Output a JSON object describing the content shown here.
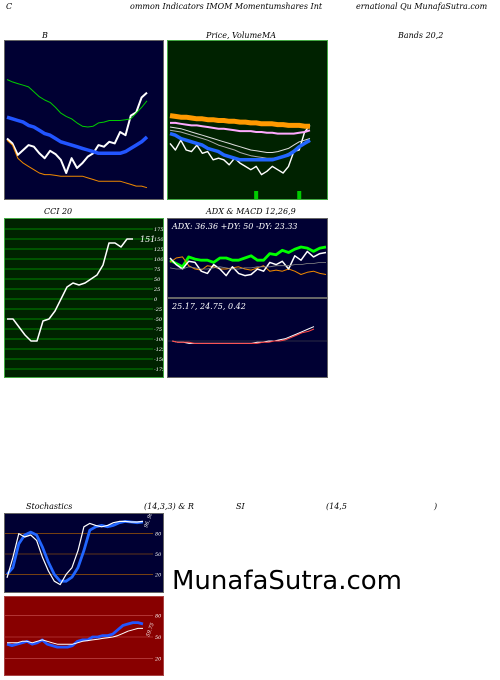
{
  "header": {
    "prefix": "C",
    "middle": "ommon  Indicators IMOM Momentumshares Int",
    "right": "ernational Qu  MunafaSutra.com"
  },
  "titles": {
    "bollinger": "B",
    "price_left": "Price,",
    "price_vol": "Volume",
    "price_ma": "MA",
    "bands": "Bands 20,2",
    "cci": "CCI 20",
    "adx_macd": "ADX  & MACD 12,26,9",
    "stoch_left": "Stochastics",
    "stoch_mid": "(14,3,3) & R",
    "rsi": "SI",
    "rsi_mid": "(14,5",
    "rsi_right": ")"
  },
  "watermark": "MunafaSutra.com",
  "colors": {
    "navy_bg": "#000033",
    "green_bg": "#002200",
    "adx_bg": "#000033",
    "rsi_bg": "#880000",
    "grid_green": "#00aa00"
  },
  "chart_data": [
    {
      "name": "bollinger",
      "type": "line",
      "series": [
        {
          "color": "#ffffff",
          "values": [
            64,
            58,
            44,
            50,
            56,
            54,
            46,
            40,
            49,
            45,
            38,
            22,
            40,
            28,
            34,
            42,
            46,
            56,
            54,
            60,
            58,
            72,
            68,
            92,
            96,
            114,
            120
          ]
        },
        {
          "color": "#2255ff",
          "values": [
            90,
            88,
            86,
            84,
            80,
            78,
            74,
            70,
            68,
            64,
            60,
            58,
            56,
            54,
            52,
            50,
            48,
            46,
            46,
            46,
            46,
            46,
            48,
            52,
            56,
            60,
            66
          ]
        },
        {
          "color": "#00cc00",
          "values": [
            136,
            133,
            131,
            129,
            127,
            121,
            115,
            111,
            108,
            102,
            95,
            91,
            88,
            83,
            79,
            78,
            79,
            83,
            84,
            86,
            86,
            86,
            87,
            88,
            95,
            102,
            110
          ]
        },
        {
          "color": "#ee8800",
          "values": [
            62,
            56,
            40,
            34,
            30,
            26,
            22,
            20,
            20,
            19,
            18,
            18,
            18,
            18,
            18,
            16,
            14,
            12,
            12,
            12,
            12,
            12,
            10,
            8,
            6,
            6,
            4
          ]
        }
      ]
    },
    {
      "name": "price_ma",
      "type": "line",
      "series": [
        {
          "color": "#ffffff",
          "values": [
            58,
            50,
            62,
            50,
            48,
            56,
            46,
            48,
            38,
            40,
            38,
            32,
            40,
            34,
            30,
            26,
            30,
            20,
            24,
            30,
            26,
            22,
            30,
            48,
            50,
            72,
            80
          ]
        },
        {
          "color": "#ff9900",
          "values": [
            92,
            91,
            90,
            90,
            89,
            88,
            88,
            87,
            87,
            86,
            86,
            85,
            85,
            84,
            84,
            83,
            83,
            82,
            82,
            82,
            81,
            81,
            80,
            80,
            80,
            79,
            79
          ]
        },
        {
          "color": "#ffaaff",
          "values": [
            83,
            83,
            82,
            81,
            80,
            80,
            79,
            78,
            77,
            76,
            76,
            75,
            74,
            73,
            73,
            73,
            72,
            72,
            71,
            71,
            70,
            70,
            70,
            70,
            71,
            72,
            74
          ]
        },
        {
          "color": "#dddddd",
          "values": [
            78,
            77,
            76,
            74,
            72,
            70,
            68,
            66,
            64,
            62,
            60,
            58,
            56,
            54,
            52,
            50,
            49,
            48,
            47,
            47,
            48,
            50,
            52,
            56,
            60,
            62,
            64
          ]
        },
        {
          "color": "#aaaaaa",
          "values": [
            74,
            73,
            72,
            70,
            68,
            66,
            64,
            62,
            59,
            56,
            54,
            52,
            50,
            47,
            45,
            43,
            42,
            41,
            40,
            40,
            41,
            43,
            46,
            50,
            54,
            57,
            60
          ]
        },
        {
          "color": "#2266ff",
          "values": [
            70,
            68,
            64,
            62,
            60,
            58,
            56,
            52,
            50,
            48,
            44,
            42,
            40,
            38,
            38,
            38,
            38,
            38,
            38,
            38,
            40,
            42,
            44,
            48,
            54,
            58,
            62
          ]
        }
      ],
      "volume": [
        0,
        0,
        0,
        0,
        0,
        0,
        0,
        0,
        0,
        0,
        0,
        0,
        0,
        0,
        0,
        0,
        1,
        0,
        0,
        0,
        0,
        0,
        0,
        0,
        1,
        0,
        0
      ]
    },
    {
      "name": "cci",
      "type": "line",
      "ylim": [
        -175,
        175
      ],
      "ticks": [
        175,
        150,
        125,
        100,
        75,
        50,
        25,
        0,
        -25,
        -50,
        -75,
        -100,
        -125,
        -150,
        -175
      ],
      "last_label": "151",
      "values": [
        -50,
        -50,
        -70,
        -90,
        -105,
        -105,
        -55,
        -50,
        -30,
        0,
        30,
        40,
        35,
        40,
        50,
        60,
        85,
        140,
        140,
        130,
        150,
        150
      ]
    },
    {
      "name": "adx_macd",
      "type": "line",
      "adx_label": "ADX: 36.36  +DY: 50  -DY: 23.33",
      "macd_label": "25.17,  24.75,  0.42",
      "adx_series": [
        {
          "color": "#00ff00",
          "values": [
            56,
            50,
            44,
            62,
            58,
            56,
            56,
            52,
            60,
            60,
            56,
            56,
            60,
            64,
            56,
            56,
            68,
            66,
            74,
            70,
            76,
            80,
            78,
            72,
            78,
            80
          ]
        },
        {
          "color": "#ee8800",
          "values": [
            52,
            60,
            62,
            46,
            40,
            38,
            46,
            44,
            40,
            40,
            42,
            44,
            40,
            38,
            42,
            46,
            36,
            38,
            36,
            40,
            36,
            30,
            34,
            36,
            32,
            30
          ]
        },
        {
          "color": "#ffffff",
          "values": [
            60,
            48,
            40,
            54,
            52,
            36,
            32,
            48,
            40,
            28,
            44,
            32,
            28,
            30,
            40,
            36,
            52,
            48,
            54,
            40,
            64,
            56,
            72,
            62,
            68,
            70
          ]
        },
        {
          "color": "#888888",
          "values": [
            42,
            40,
            40,
            44,
            42,
            40,
            40,
            42,
            44,
            42,
            40,
            40,
            42,
            42,
            44,
            44,
            44,
            46,
            46,
            46,
            48,
            48,
            50,
            50,
            52,
            52
          ]
        }
      ],
      "macd_series": [
        {
          "color": "#ffffff",
          "values": [
            0,
            -1,
            -1,
            -2,
            -2,
            -2,
            -2,
            -2,
            -2,
            -2,
            -2,
            -2,
            -2,
            -2,
            -2,
            -1,
            -1,
            0,
            0,
            1,
            2,
            4,
            6,
            8,
            10,
            12
          ]
        },
        {
          "color": "#ff4444",
          "values": [
            0,
            -1,
            -1,
            -1,
            -2,
            -2,
            -2,
            -2,
            -2,
            -2,
            -2,
            -2,
            -2,
            -2,
            -2,
            -2,
            -1,
            -1,
            0,
            0,
            1,
            3,
            5,
            7,
            8,
            10
          ]
        }
      ]
    },
    {
      "name": "stochastics",
      "type": "line",
      "ylim": [
        0,
        100
      ],
      "ticks": [
        80,
        50,
        20
      ],
      "series": [
        {
          "color": "#2266ff",
          "values": [
            20,
            30,
            65,
            78,
            82,
            78,
            60,
            38,
            20,
            10,
            10,
            16,
            30,
            55,
            85,
            90,
            92,
            90,
            92,
            96,
            98,
            97,
            96,
            97
          ]
        },
        {
          "color": "#ffffff",
          "values": [
            15,
            45,
            80,
            75,
            78,
            70,
            45,
            25,
            10,
            5,
            20,
            30,
            55,
            90,
            95,
            92,
            90,
            92,
            96,
            98,
            98,
            97,
            97,
            98
          ]
        }
      ],
      "value_label": "96, 96"
    },
    {
      "name": "rsi",
      "type": "line",
      "ylim": [
        0,
        100
      ],
      "ticks": [
        80,
        50,
        20
      ],
      "series": [
        {
          "color": "#2255ff",
          "values": [
            40,
            38,
            40,
            42,
            44,
            40,
            42,
            46,
            40,
            38,
            36,
            36,
            36,
            38,
            44,
            46,
            46,
            50,
            50,
            52,
            52,
            54,
            60,
            66,
            68,
            70,
            70,
            68
          ]
        },
        {
          "color": "#ffffff",
          "values": [
            42,
            42,
            42,
            44,
            44,
            42,
            44,
            46,
            44,
            42,
            40,
            40,
            40,
            40,
            42,
            44,
            45,
            46,
            47,
            48,
            49,
            50,
            52,
            55,
            58,
            60,
            62,
            62
          ]
        }
      ],
      "value_label": "59.75"
    }
  ]
}
